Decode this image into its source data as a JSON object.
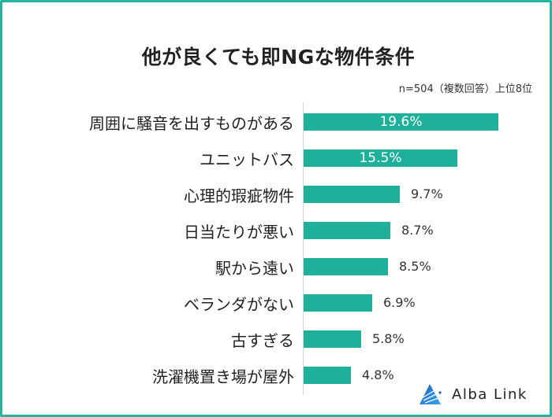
{
  "chart_data": {
    "type": "bar",
    "orientation": "horizontal",
    "title": "他が良くても即NGな物件条件",
    "subtitle": "n=504（複数回答）上位8位",
    "categories": [
      "周囲に騒音を出すものがある",
      "ユニットバス",
      "心理的瑕疵物件",
      "日当たりが悪い",
      "駅から遠い",
      "ベランダがない",
      "古すぎる",
      "洗濯機置き場が屋外"
    ],
    "values": [
      19.6,
      15.5,
      9.7,
      8.7,
      8.5,
      6.9,
      5.8,
      4.8
    ],
    "value_labels": [
      "19.6%",
      "15.5%",
      "9.7%",
      "8.7%",
      "8.5%",
      "6.9%",
      "5.8%",
      "4.8%"
    ],
    "unit": "%",
    "xlabel": "",
    "ylabel": "",
    "xlim": [
      0,
      20
    ],
    "grid": false,
    "legend": null,
    "bar_color": "#1fb09b"
  },
  "header": {
    "title": "他が良くても即NGな物件条件",
    "note": "n=504（複数回答）上位8位"
  },
  "brand": {
    "name": "Alba Link",
    "logo_icon": "triangle-rays-logo-icon",
    "frame_color": "#26b3a0"
  }
}
